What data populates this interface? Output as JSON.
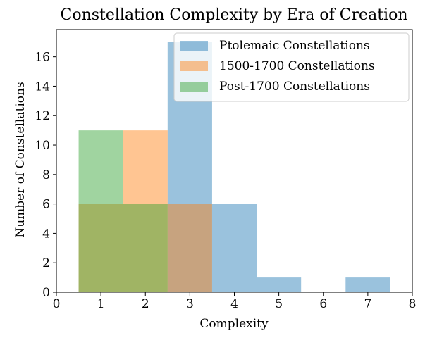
{
  "chart_data": {
    "type": "bar",
    "title": "Constellation Complexity by Era of Creation",
    "xlabel": "Complexity",
    "ylabel": "Number of Constellations",
    "xlim": [
      0,
      8
    ],
    "ylim": [
      0,
      17.85
    ],
    "xticks": [
      0,
      1,
      2,
      3,
      4,
      5,
      6,
      7,
      8
    ],
    "yticks": [
      0,
      2,
      4,
      6,
      8,
      10,
      12,
      14,
      16
    ],
    "grid": false,
    "legend_position": "top-right",
    "bin_width": 1,
    "series": [
      {
        "name": "Ptolemaic Constellations",
        "color": "#1f77b4",
        "opacity": 0.45,
        "bins": [
          {
            "x": 3,
            "count": 17
          },
          {
            "x": 4,
            "count": 6
          },
          {
            "x": 5,
            "count": 1
          },
          {
            "x": 7,
            "count": 1
          }
        ]
      },
      {
        "name": "1500-1700 Constellations",
        "color": "#ff7f0e",
        "opacity": 0.45,
        "bins": [
          {
            "x": 1,
            "count": 6
          },
          {
            "x": 2,
            "count": 11
          },
          {
            "x": 3,
            "count": 6
          }
        ]
      },
      {
        "name": "Post-1700 Constellations",
        "color": "#2ca02c",
        "opacity": 0.45,
        "bins": [
          {
            "x": 1,
            "count": 11
          },
          {
            "x": 2,
            "count": 6
          }
        ]
      }
    ]
  }
}
